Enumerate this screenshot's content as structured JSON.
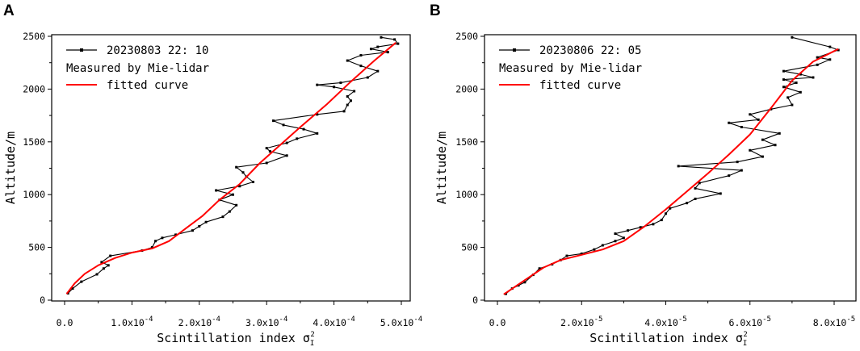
{
  "chart_data": [
    {
      "panel": "A",
      "type": "line",
      "xlabel": "Scintillation index σ",
      "xlabel_symbol_sub": "I",
      "xlabel_symbol_sup": "2",
      "ylabel": "Altitude/m",
      "xlim": [
        0,
        0.0005
      ],
      "ylim": [
        0,
        2500
      ],
      "x_ticks": [
        0,
        0.0001,
        0.0002,
        0.0003,
        0.0004,
        0.0005
      ],
      "x_tick_labels": [
        {
          "mant": "0.0",
          "exp": ""
        },
        {
          "mant": "1.0x10",
          "exp": "-4"
        },
        {
          "mant": "2.0x10",
          "exp": "-4"
        },
        {
          "mant": "3.0x10",
          "exp": "-4"
        },
        {
          "mant": "4.0x10",
          "exp": "-4"
        },
        {
          "mant": "5.0x10",
          "exp": "-4"
        }
      ],
      "y_ticks": [
        0,
        500,
        1000,
        1500,
        2000,
        2500
      ],
      "y_tick_labels": [
        "0",
        "500",
        "1000",
        "1500",
        "2000",
        "2500"
      ],
      "legend": [
        "20230803 22: 10",
        "Measured by Mie-lidar",
        "fitted curve"
      ],
      "series": [
        {
          "name": "Measured by Mie-lidar",
          "color": "#000000",
          "marker": true,
          "points": [
            [
              5e-06,
              65
            ],
            [
              1.2e-05,
              110
            ],
            [
              2.5e-05,
              175
            ],
            [
              4.8e-05,
              245
            ],
            [
              5.8e-05,
              300
            ],
            [
              6.5e-05,
              330
            ],
            [
              5.5e-05,
              360
            ],
            [
              6.8e-05,
              420
            ],
            [
              0.000115,
              470
            ],
            [
              0.00013,
              500
            ],
            [
              0.000135,
              560
            ],
            [
              0.000145,
              590
            ],
            [
              0.000165,
              620
            ],
            [
              0.00019,
              660
            ],
            [
              0.0002,
              700
            ],
            [
              0.00021,
              740
            ],
            [
              0.000235,
              790
            ],
            [
              0.000245,
              840
            ],
            [
              0.000255,
              900
            ],
            [
              0.00023,
              950
            ],
            [
              0.00025,
              1000
            ],
            [
              0.000225,
              1040
            ],
            [
              0.00026,
              1080
            ],
            [
              0.00028,
              1120
            ],
            [
              0.00027,
              1170
            ],
            [
              0.000265,
              1210
            ],
            [
              0.000255,
              1260
            ],
            [
              0.0003,
              1300
            ],
            [
              0.00033,
              1370
            ],
            [
              0.000305,
              1410
            ],
            [
              0.0003,
              1440
            ],
            [
              0.00033,
              1490
            ],
            [
              0.000345,
              1530
            ],
            [
              0.000375,
              1580
            ],
            [
              0.000355,
              1620
            ],
            [
              0.000325,
              1660
            ],
            [
              0.00031,
              1700
            ],
            [
              0.000375,
              1760
            ],
            [
              0.000415,
              1790
            ],
            [
              0.00042,
              1850
            ],
            [
              0.000425,
              1890
            ],
            [
              0.00042,
              1930
            ],
            [
              0.00043,
              1980
            ],
            [
              0.0004,
              2020
            ],
            [
              0.000375,
              2040
            ],
            [
              0.00041,
              2060
            ],
            [
              0.00045,
              2110
            ],
            [
              0.000465,
              2170
            ],
            [
              0.00044,
              2220
            ],
            [
              0.00042,
              2270
            ],
            [
              0.00044,
              2320
            ],
            [
              0.00048,
              2350
            ],
            [
              0.000455,
              2380
            ],
            [
              0.000465,
              2400
            ],
            [
              0.000495,
              2430
            ],
            [
              0.00049,
              2470
            ],
            [
              0.00047,
              2490
            ]
          ]
        },
        {
          "name": "fitted curve",
          "color": "#ff0000",
          "marker": false,
          "points": [
            [
              3e-06,
              60
            ],
            [
              1.5e-05,
              160
            ],
            [
              3e-05,
              250
            ],
            [
              5e-05,
              330
            ],
            [
              7.5e-05,
              400
            ],
            [
              0.0001,
              450
            ],
            [
              0.00013,
              490
            ],
            [
              0.000155,
              560
            ],
            [
              0.00018,
              680
            ],
            [
              0.000205,
              800
            ],
            [
              0.00023,
              950
            ],
            [
              0.00026,
              1100
            ],
            [
              0.00029,
              1300
            ],
            [
              0.00032,
              1470
            ],
            [
              0.00035,
              1640
            ],
            [
              0.00039,
              1860
            ],
            [
              0.000425,
              2070
            ],
            [
              0.00046,
              2270
            ],
            [
              0.000492,
              2440
            ]
          ]
        }
      ]
    },
    {
      "panel": "B",
      "type": "line",
      "xlabel": "Scintillation index σ",
      "xlabel_symbol_sub": "I",
      "xlabel_symbol_sup": "2",
      "ylabel": "Altitude/m",
      "xlim": [
        -2e-06,
        8.5e-05
      ],
      "ylim": [
        0,
        2500
      ],
      "x_ticks": [
        0,
        2e-05,
        4e-05,
        6e-05,
        8e-05
      ],
      "x_tick_labels": [
        {
          "mant": "0.0",
          "exp": ""
        },
        {
          "mant": "2.0x10",
          "exp": "-5"
        },
        {
          "mant": "4.0x10",
          "exp": "-5"
        },
        {
          "mant": "6.0x10",
          "exp": "-5"
        },
        {
          "mant": "8.0x10",
          "exp": "-5"
        }
      ],
      "y_ticks": [
        0,
        500,
        1000,
        1500,
        2000,
        2500
      ],
      "y_tick_labels": [
        "0",
        "500",
        "1000",
        "1500",
        "2000",
        "2500"
      ],
      "legend": [
        "20230806 22: 05",
        "Measured by Mie-lidar",
        "fitted curve"
      ],
      "series": [
        {
          "name": "Measured by Mie-lidar",
          "color": "#000000",
          "marker": true,
          "points": [
            [
              2e-06,
              60
            ],
            [
              3.5e-06,
              110
            ],
            [
              5e-06,
              140
            ],
            [
              6.5e-06,
              170
            ],
            [
              8.5e-06,
              240
            ],
            [
              1e-05,
              300
            ],
            [
              1.3e-05,
              340
            ],
            [
              1.5e-05,
              380
            ],
            [
              1.65e-05,
              420
            ],
            [
              2e-05,
              440
            ],
            [
              2.3e-05,
              480
            ],
            [
              2.5e-05,
              520
            ],
            [
              2.8e-05,
              560
            ],
            [
              3e-05,
              590
            ],
            [
              2.8e-05,
              630
            ],
            [
              3.1e-05,
              660
            ],
            [
              3.4e-05,
              690
            ],
            [
              3.7e-05,
              720
            ],
            [
              3.9e-05,
              760
            ],
            [
              4e-05,
              820
            ],
            [
              4.1e-05,
              870
            ],
            [
              4.5e-05,
              920
            ],
            [
              4.7e-05,
              960
            ],
            [
              5.3e-05,
              1010
            ],
            [
              4.7e-05,
              1060
            ],
            [
              4.8e-05,
              1110
            ],
            [
              5.5e-05,
              1180
            ],
            [
              5.8e-05,
              1230
            ],
            [
              4.3e-05,
              1270
            ],
            [
              5.7e-05,
              1310
            ],
            [
              6.3e-05,
              1360
            ],
            [
              6e-05,
              1420
            ],
            [
              6.6e-05,
              1470
            ],
            [
              6.3e-05,
              1520
            ],
            [
              6.7e-05,
              1580
            ],
            [
              5.8e-05,
              1640
            ],
            [
              5.5e-05,
              1680
            ],
            [
              6.2e-05,
              1710
            ],
            [
              6e-05,
              1760
            ],
            [
              6.5e-05,
              1810
            ],
            [
              7e-05,
              1850
            ],
            [
              6.9e-05,
              1920
            ],
            [
              7.2e-05,
              1970
            ],
            [
              6.8e-05,
              2020
            ],
            [
              7.1e-05,
              2060
            ],
            [
              6.8e-05,
              2090
            ],
            [
              7.5e-05,
              2110
            ],
            [
              7.2e-05,
              2140
            ],
            [
              6.8e-05,
              2170
            ],
            [
              7.6e-05,
              2230
            ],
            [
              7.9e-05,
              2280
            ],
            [
              7.6e-05,
              2300
            ],
            [
              8.1e-05,
              2370
            ],
            [
              7.9e-05,
              2400
            ],
            [
              7e-05,
              2490
            ]
          ]
        },
        {
          "name": "fitted curve",
          "color": "#ff0000",
          "marker": false,
          "points": [
            [
              1.5e-06,
              55
            ],
            [
              5e-06,
              150
            ],
            [
              8e-06,
              230
            ],
            [
              1.1e-05,
              310
            ],
            [
              1.5e-05,
              380
            ],
            [
              2e-05,
              430
            ],
            [
              2.5e-05,
              480
            ],
            [
              3e-05,
              560
            ],
            [
              3.5e-05,
              700
            ],
            [
              4e-05,
              860
            ],
            [
              4.5e-05,
              1030
            ],
            [
              5e-05,
              1200
            ],
            [
              5.5e-05,
              1380
            ],
            [
              6e-05,
              1570
            ],
            [
              6.5e-05,
              1820
            ],
            [
              7e-05,
              2080
            ],
            [
              7.5e-05,
              2260
            ],
            [
              8.1e-05,
              2380
            ]
          ]
        }
      ]
    }
  ]
}
